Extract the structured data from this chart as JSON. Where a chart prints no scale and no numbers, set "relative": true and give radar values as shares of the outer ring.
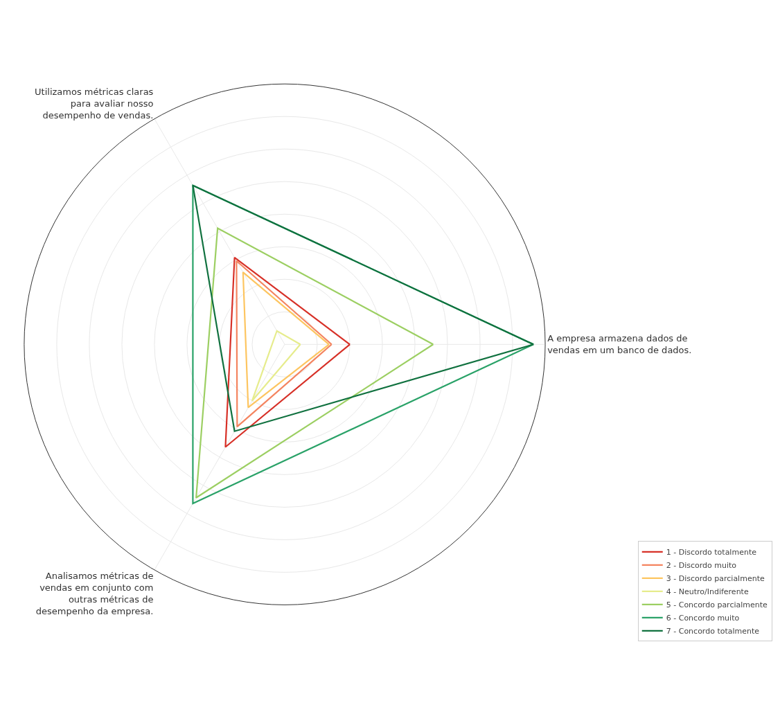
{
  "chart_data": {
    "type": "radar",
    "relative": true,
    "grid": true,
    "legend": "bottom right",
    "categories": [
      "A empresa armazena dados de\nvendas em um banco de dados.",
      "Analisamos métricas de\nvendas em conjunto com\noutras métricas de\ndesempenho da empresa.",
      "Utilizamos métricas claras\npara avaliar nosso\ndesempenho de vendas."
    ],
    "series": [
      {
        "name": "1 - Discordo totalmente",
        "color": "#d73027",
        "values": [
          0.25,
          0.455,
          0.385
        ]
      },
      {
        "name": "2 - Discordo muito",
        "color": "#f4845f",
        "values": [
          0.18,
          0.365,
          0.37
        ]
      },
      {
        "name": "3 - Discordo parcialmente",
        "color": "#fdc560",
        "values": [
          0.17,
          0.28,
          0.32
        ]
      },
      {
        "name": "4 - Neutro/Indiferente",
        "color": "#e6ec8c",
        "values": [
          0.06,
          0.25,
          0.06
        ]
      },
      {
        "name": "5 - Concordo parcialmente",
        "color": "#9ccf62",
        "values": [
          0.57,
          0.68,
          0.515
        ]
      },
      {
        "name": "6 - Concordo muito",
        "color": "#2aa268",
        "values": [
          0.955,
          0.705,
          0.705
        ]
      },
      {
        "name": "7 - Concordo totalmente",
        "color": "#10713f",
        "values": [
          0.955,
          0.385,
          0.705
        ]
      }
    ]
  }
}
